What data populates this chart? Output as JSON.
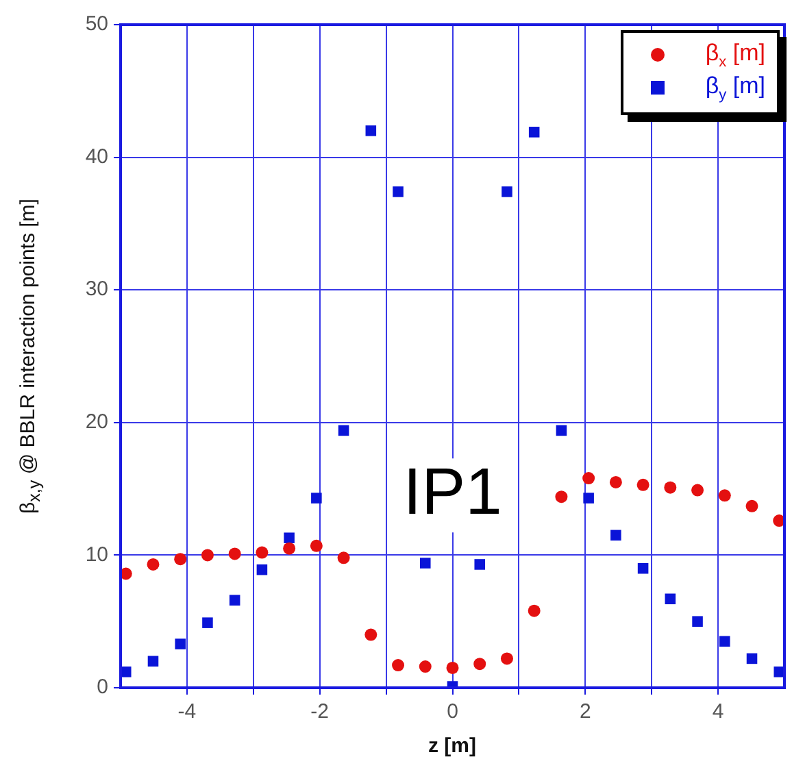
{
  "chart_data": {
    "type": "scatter",
    "xlabel": "z [m]",
    "ylabel": "β$_{x,y}$  @ BBLR interaction points [m]",
    "annotations": [
      "IP1"
    ],
    "x": [
      -4.92,
      -4.51,
      -4.1,
      -3.69,
      -3.28,
      -2.87,
      -2.46,
      -2.05,
      -1.64,
      -1.23,
      -0.82,
      -0.41,
      0,
      0.41,
      0.82,
      1.23,
      1.64,
      2.05,
      2.46,
      2.87,
      3.28,
      3.69,
      4.1,
      4.51,
      4.92
    ],
    "series": [
      {
        "name": "β$_{x}$ [m]",
        "color": "#e41010",
        "marker": "circle",
        "values": [
          8.6,
          9.3,
          9.7,
          10.0,
          10.1,
          10.2,
          10.5,
          10.7,
          9.8,
          4.0,
          1.7,
          1.6,
          1.5,
          1.8,
          2.2,
          5.8,
          14.4,
          15.8,
          15.5,
          15.3,
          15.1,
          14.9,
          14.5,
          13.7,
          12.6
        ]
      },
      {
        "name": "β$_{y}$ [m]",
        "color": "#0a14d8",
        "marker": "square",
        "values": [
          1.2,
          2.0,
          3.3,
          4.9,
          6.6,
          8.9,
          11.3,
          14.3,
          19.4,
          42.0,
          37.4,
          9.4,
          0.1,
          9.3,
          37.4,
          41.9,
          19.4,
          14.3,
          11.5,
          9.0,
          6.7,
          5.0,
          3.5,
          2.2,
          1.2
        ]
      }
    ],
    "xlim": [
      -5,
      5
    ],
    "xticks": [
      -4,
      {
        "value": -3,
        "label": null
      },
      -2,
      {
        "value": -1,
        "label": null
      },
      0,
      {
        "value": 1,
        "label": null
      },
      2,
      {
        "value": 3,
        "label": null
      },
      4
    ],
    "ylim": [
      0,
      50
    ],
    "yticks": [
      0,
      10,
      20,
      30,
      40,
      50
    ],
    "grid": true,
    "legend": "top right"
  }
}
